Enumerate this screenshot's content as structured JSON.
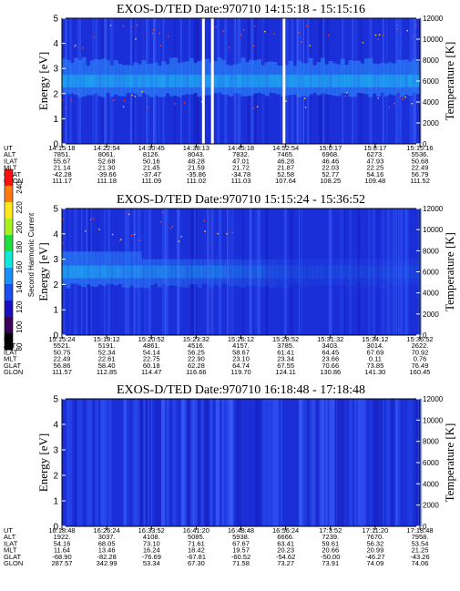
{
  "colorbar": {
    "title": "Second Harmonic Current",
    "ticks": [
      "240",
      "220",
      "200",
      "180",
      "160",
      "140",
      "120",
      "100",
      "80"
    ],
    "colors": [
      "#ff1010",
      "#ff7a10",
      "#ffe81a",
      "#a8f020",
      "#20e040",
      "#10e8d8",
      "#1a90f8",
      "#1a4fef",
      "#1a10c0",
      "#3a005a",
      "#000000"
    ]
  },
  "chart_data": [
    {
      "type": "heatmap",
      "title": "EXOS-D/TED   Date:970710   14:15:18 - 15:15:16",
      "ylabel": "Energy [eV]",
      "y2label": "Temperature [K]",
      "ylim": [
        0,
        5
      ],
      "y2lim": [
        0,
        12000
      ],
      "yticks": [
        "0",
        "1",
        "2",
        "3",
        "4",
        "5"
      ],
      "y2ticks": [
        "0",
        "2000",
        "4000",
        "6000",
        "8000",
        "10000",
        "12000"
      ],
      "orbit_labels": [
        "UT",
        "ALT",
        "ILAT",
        "MLT",
        "GLAT",
        "GLON"
      ],
      "columns": [
        [
          "14:15:18",
          "7851.",
          "55.67",
          "21.14",
          "-42.28",
          "111.17"
        ],
        [
          "14:22:54",
          "8061.",
          "52.68",
          "21.30",
          "-39.66",
          "111.18"
        ],
        [
          "14:30:45",
          "8126.",
          "50.16",
          "21.45",
          "-37.47",
          "111.09"
        ],
        [
          "14:38:13",
          "8043.",
          "48.28",
          "21.59",
          "-35.86",
          "111.02"
        ],
        [
          "14:45:18",
          "7832.",
          "47.01",
          "21.72",
          "-34.78",
          "111.03"
        ],
        [
          "14:52:54",
          "7465.",
          "46.28",
          "21.87",
          "52.58",
          "107.64"
        ],
        [
          "15:0:17",
          "6968.",
          "46.46",
          "22.03",
          "52.77",
          "108.25"
        ],
        [
          "15:8:17",
          "6273.",
          "47.93",
          "22.25",
          "54.16",
          "109.48"
        ],
        [
          "15:15:16",
          "5536.",
          "50.68",
          "22.49",
          "56.79",
          "111.52"
        ]
      ],
      "energy_band_eV": [
        2.0,
        3.0
      ],
      "data_gaps_ut": [
        "14:39:00",
        "14:40:30",
        "14:52:30"
      ]
    },
    {
      "type": "heatmap",
      "title": "EXOS-D/TED   Date:970710   15:15:24 - 15:36:52",
      "ylabel": "Energy [eV]",
      "y2label": "Temperature [K]",
      "ylim": [
        0,
        5
      ],
      "y2lim": [
        0,
        12000
      ],
      "yticks": [
        "0",
        "1",
        "2",
        "3",
        "4",
        "5"
      ],
      "y2ticks": [
        "0",
        "2000",
        "4000",
        "6000",
        "8000",
        "10000",
        "12000"
      ],
      "orbit_labels": [
        "UT",
        "ALT",
        "ILAT",
        "MLT",
        "GLAT",
        "GLON"
      ],
      "columns": [
        [
          "15:15:24",
          "5521.",
          "50.75",
          "22.49",
          "56.86",
          "111.57"
        ],
        [
          "15:18:12",
          "5191.",
          "52.34",
          "22.61",
          "58.40",
          "112.85"
        ],
        [
          "15:20:52",
          "4861.",
          "54.14",
          "22.75",
          "60.18",
          "114.47"
        ],
        [
          "15:23:32",
          "4516.",
          "56.25",
          "22.90",
          "62.28",
          "116.66"
        ],
        [
          "15:26:12",
          "4157.",
          "58.67",
          "23.10",
          "64.74",
          "119.70"
        ],
        [
          "15:28:52",
          "3785.",
          "61.41",
          "23.34",
          "67.55",
          "124.11"
        ],
        [
          "15:31:32",
          "3403.",
          "64.45",
          "23.66",
          "70.66",
          "130.86"
        ],
        [
          "15:34:12",
          "3014.",
          "67.69",
          "0.11",
          "73.85",
          "141.30"
        ],
        [
          "15:36:52",
          "2622.",
          "70.92",
          "0.76",
          "76.49",
          "160.45"
        ]
      ],
      "energy_band_eV": [
        2.0,
        3.0
      ]
    },
    {
      "type": "heatmap",
      "title": "EXOS-D/TED   Date:970710   16:18:48 - 17:18:48",
      "ylabel": "Energy [eV]",
      "y2label": "Temperature [K]",
      "ylim": [
        0,
        5
      ],
      "y2lim": [
        0,
        12000
      ],
      "yticks": [
        "0",
        "1",
        "2",
        "3",
        "4",
        "5"
      ],
      "y2ticks": [
        "0",
        "2000",
        "4000",
        "6000",
        "8000",
        "10000",
        "12000"
      ],
      "orbit_labels": [
        "UT",
        "ALT",
        "ILAT",
        "MLT",
        "GLAT",
        "GLON"
      ],
      "columns": [
        [
          "16:18:48",
          "1922.",
          "54.16",
          "11.64",
          "-68.90",
          "287.57"
        ],
        [
          "16:26:24",
          "3037.",
          "68.05",
          "13.46",
          "-82.28",
          "342.99"
        ],
        [
          "16:33:52",
          "4108.",
          "73.10",
          "16.24",
          "-76.69",
          "53.34"
        ],
        [
          "16:41:20",
          "5085.",
          "71.61",
          "18.42",
          "-67.81",
          "67.30"
        ],
        [
          "16:48:48",
          "5938.",
          "67.67",
          "19.57",
          "-60.52",
          "71.58"
        ],
        [
          "16:56:24",
          "6666.",
          "63.41",
          "20.23",
          "-54.62",
          "73.27"
        ],
        [
          "17:3:52",
          "7239.",
          "59.61",
          "20.66",
          "-50.00",
          "73.91"
        ],
        [
          "17:11:20",
          "7670.",
          "56.32",
          "20.99",
          "-46.27",
          "74.09"
        ],
        [
          "17:18:48",
          "7958.",
          "53.54",
          "21.25",
          "-43.26",
          "74.06"
        ]
      ]
    }
  ]
}
